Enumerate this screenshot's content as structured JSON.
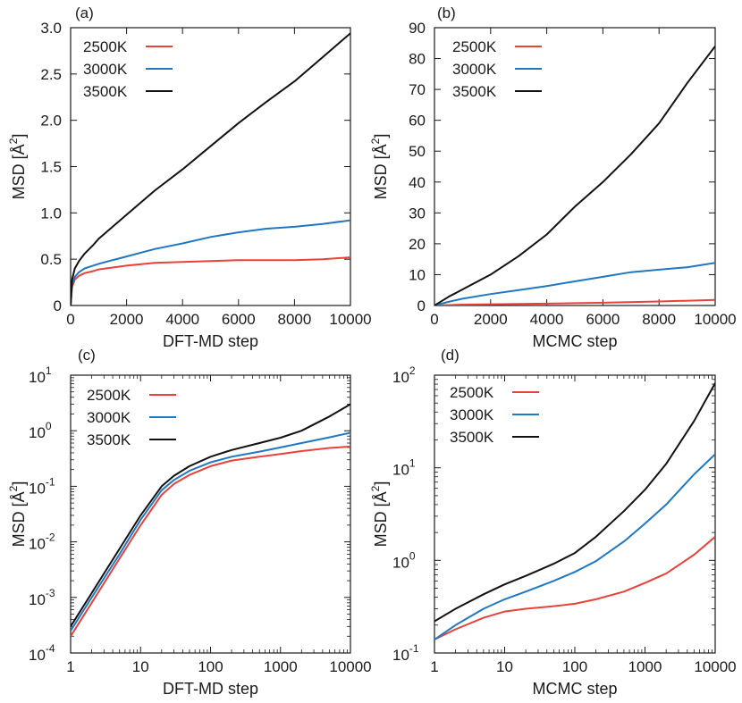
{
  "colors": {
    "2500K": "#e8423a",
    "3000K": "#1f78c1",
    "3500K": "#111111",
    "axis": "#1a1a1a"
  },
  "chart_data": [
    {
      "panel": "(a)",
      "type": "line",
      "xscale": "linear",
      "yscale": "linear",
      "xlabel": "DFT-MD step",
      "ylabel_base": "MSD [",
      "ylabel_unit": "Å",
      "ylabel_exp": "2",
      "ylabel_close": "]",
      "xlim": [
        0,
        10000
      ],
      "ylim": [
        0,
        3.0
      ],
      "xticks": [
        0,
        2000,
        4000,
        6000,
        8000,
        10000
      ],
      "xtick_labels": [
        "0",
        "2000",
        "4000",
        "6000",
        "8000",
        "10000"
      ],
      "yticks": [
        0,
        0.5,
        1.0,
        1.5,
        2.0,
        2.5,
        3.0
      ],
      "ytick_labels": [
        "0",
        "0.5",
        "1.0",
        "1.5",
        "2.0",
        "2.5",
        "3.0"
      ],
      "legend": "top-left",
      "series": [
        {
          "name": "2500K",
          "color_key": "2500K",
          "x": [
            0,
            50,
            150,
            300,
            500,
            800,
            1000,
            1500,
            2000,
            3000,
            4000,
            5000,
            6000,
            7000,
            8000,
            9000,
            10000
          ],
          "y": [
            0,
            0.2,
            0.28,
            0.32,
            0.35,
            0.37,
            0.39,
            0.41,
            0.43,
            0.46,
            0.47,
            0.48,
            0.49,
            0.49,
            0.49,
            0.5,
            0.52
          ]
        },
        {
          "name": "3000K",
          "color_key": "3000K",
          "x": [
            0,
            50,
            150,
            300,
            500,
            800,
            1000,
            1500,
            2000,
            3000,
            4000,
            5000,
            6000,
            7000,
            8000,
            9000,
            10000
          ],
          "y": [
            0,
            0.22,
            0.31,
            0.36,
            0.4,
            0.43,
            0.45,
            0.49,
            0.53,
            0.61,
            0.67,
            0.74,
            0.79,
            0.83,
            0.85,
            0.88,
            0.92
          ]
        },
        {
          "name": "3500K",
          "color_key": "3500K",
          "x": [
            0,
            50,
            150,
            300,
            500,
            800,
            1000,
            1500,
            2000,
            3000,
            4000,
            5000,
            6000,
            7000,
            8000,
            9000,
            10000
          ],
          "y": [
            0,
            0.28,
            0.4,
            0.48,
            0.56,
            0.65,
            0.72,
            0.85,
            0.98,
            1.24,
            1.47,
            1.72,
            1.97,
            2.2,
            2.42,
            2.68,
            2.94
          ]
        }
      ]
    },
    {
      "panel": "(b)",
      "type": "line",
      "xscale": "linear",
      "yscale": "linear",
      "xlabel": "MCMC step",
      "ylabel_base": "MSD [",
      "ylabel_unit": "Å",
      "ylabel_exp": "2",
      "ylabel_close": "]",
      "xlim": [
        0,
        10000
      ],
      "ylim": [
        0,
        90
      ],
      "xticks": [
        0,
        2000,
        4000,
        6000,
        8000,
        10000
      ],
      "xtick_labels": [
        "0",
        "2000",
        "4000",
        "6000",
        "8000",
        "10000"
      ],
      "yticks": [
        0,
        10,
        20,
        30,
        40,
        50,
        60,
        70,
        80,
        90
      ],
      "ytick_labels": [
        "0",
        "10",
        "20",
        "30",
        "40",
        "50",
        "60",
        "70",
        "80",
        "90"
      ],
      "legend": "top-left",
      "series": [
        {
          "name": "2500K",
          "color_key": "2500K",
          "x": [
            0,
            1000,
            2000,
            4000,
            6000,
            8000,
            10000
          ],
          "y": [
            0,
            0.3,
            0.4,
            0.6,
            0.9,
            1.3,
            1.8
          ]
        },
        {
          "name": "3000K",
          "color_key": "3000K",
          "x": [
            0,
            500,
            1000,
            2000,
            3000,
            4000,
            5000,
            6000,
            7000,
            8000,
            9000,
            10000
          ],
          "y": [
            0,
            1.2,
            2.2,
            3.7,
            5.0,
            6.3,
            7.8,
            9.3,
            10.8,
            11.6,
            12.4,
            13.8
          ]
        },
        {
          "name": "3500K",
          "color_key": "3500K",
          "x": [
            0,
            500,
            1000,
            2000,
            3000,
            4000,
            5000,
            6000,
            7000,
            8000,
            9000,
            10000
          ],
          "y": [
            0,
            2.8,
            5.2,
            10.0,
            16.0,
            23.0,
            32.0,
            40.0,
            49.0,
            59.0,
            72.0,
            84.0
          ]
        }
      ]
    },
    {
      "panel": "(c)",
      "type": "line",
      "xscale": "log",
      "yscale": "log",
      "xlabel": "DFT-MD step",
      "ylabel_base": "MSD [",
      "ylabel_unit": "Å",
      "ylabel_exp": "2",
      "ylabel_close": "]",
      "xlim": [
        1,
        10000
      ],
      "ylim": [
        0.0001,
        10
      ],
      "xticks": [
        1,
        10,
        100,
        1000,
        10000
      ],
      "xtick_labels": [
        "1",
        "10",
        "100",
        "1000",
        "10000"
      ],
      "yticks": [
        0.0001,
        0.001,
        0.01,
        0.1,
        1,
        10
      ],
      "ytick_labels": [
        {
          "base": "10",
          "exp": "-4"
        },
        {
          "base": "10",
          "exp": "-3"
        },
        {
          "base": "10",
          "exp": "-2"
        },
        {
          "base": "10",
          "exp": "-1"
        },
        {
          "base": "10",
          "exp": "0"
        },
        {
          "base": "10",
          "exp": "1"
        }
      ],
      "legend": "top-left",
      "series": [
        {
          "name": "2500K",
          "color_key": "2500K",
          "x": [
            1,
            2,
            5,
            10,
            20,
            30,
            50,
            100,
            200,
            500,
            1000,
            2000,
            5000,
            10000
          ],
          "y": [
            0.0002,
            0.0008,
            0.005,
            0.02,
            0.07,
            0.11,
            0.16,
            0.23,
            0.29,
            0.34,
            0.38,
            0.43,
            0.49,
            0.52
          ]
        },
        {
          "name": "3000K",
          "color_key": "3000K",
          "x": [
            1,
            2,
            5,
            10,
            20,
            30,
            50,
            100,
            200,
            500,
            1000,
            2000,
            5000,
            10000
          ],
          "y": [
            0.00025,
            0.001,
            0.006,
            0.025,
            0.085,
            0.13,
            0.19,
            0.27,
            0.34,
            0.42,
            0.5,
            0.6,
            0.76,
            0.92
          ]
        },
        {
          "name": "3500K",
          "color_key": "3500K",
          "x": [
            1,
            2,
            5,
            10,
            20,
            30,
            50,
            100,
            200,
            500,
            1000,
            2000,
            5000,
            10000
          ],
          "y": [
            0.0003,
            0.0012,
            0.0075,
            0.03,
            0.1,
            0.155,
            0.23,
            0.34,
            0.45,
            0.6,
            0.75,
            1.0,
            1.8,
            3.0
          ]
        }
      ]
    },
    {
      "panel": "(d)",
      "type": "line",
      "xscale": "log",
      "yscale": "log",
      "xlabel": "MCMC step",
      "ylabel_base": "MSD [",
      "ylabel_unit": "Å",
      "ylabel_exp": "2",
      "ylabel_close": "]",
      "xlim": [
        1,
        10000
      ],
      "ylim": [
        0.1,
        100
      ],
      "xticks": [
        1,
        10,
        100,
        1000,
        10000
      ],
      "xtick_labels": [
        "1",
        "10",
        "100",
        "1000",
        "10000"
      ],
      "yticks": [
        0.1,
        1,
        10,
        100
      ],
      "ytick_labels": [
        {
          "base": "10",
          "exp": "-1"
        },
        {
          "base": "10",
          "exp": "0"
        },
        {
          "base": "10",
          "exp": "1"
        },
        {
          "base": "10",
          "exp": "2"
        }
      ],
      "legend": "top-left",
      "series": [
        {
          "name": "2500K",
          "color_key": "2500K",
          "x": [
            1,
            2,
            5,
            10,
            20,
            50,
            100,
            200,
            500,
            1000,
            2000,
            5000,
            10000
          ],
          "y": [
            0.14,
            0.18,
            0.24,
            0.28,
            0.3,
            0.32,
            0.34,
            0.38,
            0.46,
            0.57,
            0.72,
            1.15,
            1.8
          ]
        },
        {
          "name": "3000K",
          "color_key": "3000K",
          "x": [
            1,
            2,
            5,
            10,
            20,
            50,
            100,
            200,
            500,
            1000,
            2000,
            5000,
            10000
          ],
          "y": [
            0.14,
            0.2,
            0.3,
            0.38,
            0.46,
            0.6,
            0.75,
            0.98,
            1.6,
            2.5,
            4.0,
            8.5,
            14.0
          ]
        },
        {
          "name": "3500K",
          "color_key": "3500K",
          "x": [
            1,
            2,
            5,
            10,
            20,
            50,
            100,
            200,
            500,
            1000,
            2000,
            5000,
            10000
          ],
          "y": [
            0.22,
            0.3,
            0.43,
            0.55,
            0.68,
            0.92,
            1.2,
            1.8,
            3.4,
            5.8,
            11.0,
            32.0,
            82.0
          ]
        }
      ]
    }
  ]
}
